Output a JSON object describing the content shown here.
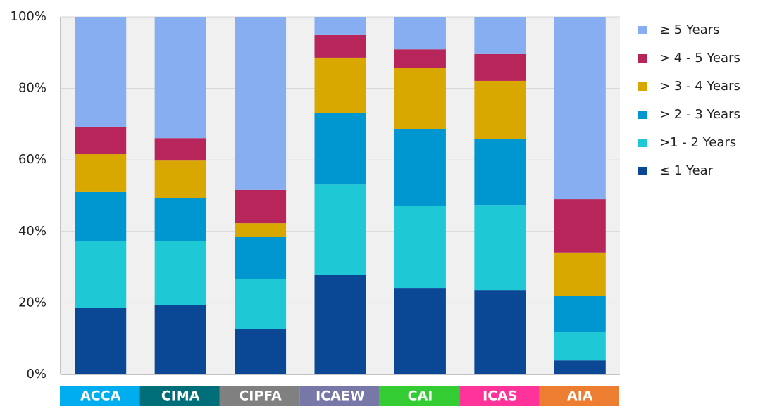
{
  "chart_data": {
    "type": "stacked-bar",
    "categories": [
      "ACCA",
      "CIMA",
      "CIPFA",
      "ICAEW",
      "CAI",
      "ICAS",
      "AIA"
    ],
    "category_colors": [
      "#00aeef",
      "#006e78",
      "#808080",
      "#7878a8",
      "#33cc33",
      "#ff3399",
      "#ed7d31"
    ],
    "series": [
      {
        "name": "≤ 1 Year",
        "color": "#0a4896",
        "values": [
          18.7,
          19.3,
          12.8,
          27.8,
          24.2,
          23.6,
          3.9
        ]
      },
      {
        "name": ">1 - 2 Years",
        "color": "#1ec8d4",
        "values": [
          18.7,
          17.9,
          13.8,
          25.3,
          23.0,
          23.8,
          7.9
        ]
      },
      {
        "name": "> 2 - 3 Years",
        "color": "#0096d0",
        "values": [
          13.6,
          12.2,
          11.8,
          20.1,
          21.5,
          18.5,
          10.2
        ]
      },
      {
        "name": "> 3 - 4 Years",
        "color": "#d8a800",
        "values": [
          10.6,
          10.4,
          3.9,
          15.4,
          17.1,
          16.2,
          12.1
        ]
      },
      {
        "name": "> 4 - 5 Years",
        "color": "#b8255a",
        "values": [
          7.7,
          6.3,
          9.3,
          6.3,
          5.1,
          7.5,
          14.9
        ]
      },
      {
        "name": "≥ 5 Years",
        "color": "#86aef0",
        "values": [
          30.7,
          33.9,
          48.4,
          5.1,
          9.1,
          10.4,
          51.0
        ]
      }
    ],
    "ylim": [
      0,
      100
    ],
    "yticks": [
      {
        "value": 0,
        "label": "0%"
      },
      {
        "value": 20,
        "label": "20%"
      },
      {
        "value": 40,
        "label": "40%"
      },
      {
        "value": 60,
        "label": "60%"
      },
      {
        "value": 80,
        "label": "80%"
      },
      {
        "value": 100,
        "label": "100%"
      }
    ],
    "grid": true,
    "legend": "right"
  }
}
